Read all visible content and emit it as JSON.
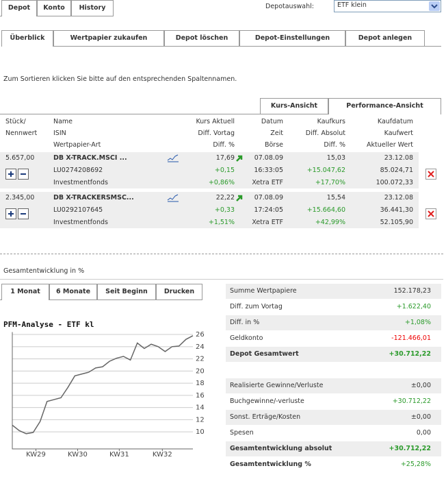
{
  "top_tabs": [
    "Depot",
    "Konto",
    "History"
  ],
  "depot_select": {
    "label": "Depotauswahl:",
    "value": "ETF klein"
  },
  "sub_tabs": [
    "Überblick",
    "Wertpapier zukaufen",
    "Depot löschen",
    "Depot-Einstellungen",
    "Depot anlegen"
  ],
  "sort_hint": "Zum Sortieren klicken Sie bitte auf den entsprechenden Spaltennamen.",
  "view_tabs": [
    "Kurs-Ansicht",
    "Performance-Ansicht"
  ],
  "columns": [
    [
      "Stück/",
      "Nennwert"
    ],
    [
      "Name",
      "ISIN",
      "Wertpapier-Art"
    ],
    [
      "Kurs Aktuell",
      "Diff. Vortag",
      "Diff. %"
    ],
    [
      "Datum",
      "Zeit",
      "Börse"
    ],
    [
      "Kaufkurs",
      "Diff. Absolut",
      "Diff. %"
    ],
    [
      "Kaufdatum",
      "Kaufwert",
      "Aktueller Wert"
    ]
  ],
  "positions": [
    [
      [
        "5.657,00"
      ],
      [
        "DB X-TRACK.MSCI ...",
        "LU0274208692",
        "Investmentfonds"
      ],
      [
        "17,69",
        "+0,15",
        "+0,86%"
      ],
      [
        "07.08.09",
        "16:33:05",
        "Xetra ETF"
      ],
      [
        "15,03",
        "+15.047,62",
        "+17,70%"
      ],
      [
        "23.12.08",
        "85.024,71",
        "100.072,33"
      ]
    ],
    [
      [
        "2.345,00"
      ],
      [
        "DB X-TRACKERSMSC...",
        "LU0292107645",
        "Investmentfonds"
      ],
      [
        "22,22",
        "+0,33",
        "+1,51%"
      ],
      [
        "07.08.09",
        "17:24:05",
        "Xetra ETF"
      ],
      [
        "15,54",
        "+15.664,60",
        "+42,99%"
      ],
      [
        "23.12.08",
        "36.441,30",
        "52.105,90"
      ]
    ]
  ],
  "section_title": "Gesamtentwicklung in %",
  "period_tabs": [
    "1 Monat",
    "6 Monate",
    "Seit Beginn",
    "Drucken"
  ],
  "chart_data": {
    "type": "line",
    "title": "PFM-Analyse - ETF kl",
    "x": [
      0,
      1,
      2,
      3,
      4,
      5,
      6,
      7,
      8,
      9,
      10,
      11,
      12,
      13,
      14,
      15,
      16,
      17,
      18,
      19,
      20,
      21,
      22,
      23,
      24,
      25,
      26
    ],
    "series": [
      {
        "color": "#666666",
        "values": [
          11.1,
          10.2,
          9.7,
          9.9,
          11.7,
          15.0,
          15.3,
          15.6,
          17.3,
          19.2,
          19.5,
          19.8,
          20.5,
          20.7,
          21.6,
          22.1,
          22.4,
          21.8,
          24.6,
          23.7,
          24.4,
          24.0,
          23.2,
          24.0,
          24.1,
          25.2,
          25.8
        ]
      }
    ],
    "xlim": [
      0,
      26
    ],
    "xticks": [
      {
        "value": 3.4,
        "label": "KW29"
      },
      {
        "value": 9.4,
        "label": "KW30"
      },
      {
        "value": 15.4,
        "label": "KW31"
      },
      {
        "value": 21.6,
        "label": "KW32"
      }
    ],
    "ylim": [
      7.2,
      26.4
    ],
    "yticks": [
      10,
      12,
      14,
      16,
      18,
      20,
      22,
      24,
      26
    ],
    "grid": true
  },
  "summary": [
    [
      [
        "Summe Wertpapiere",
        "152.178,23"
      ],
      [
        "Diff. zum Vortag",
        "+1.622,40"
      ],
      [
        "Diff. in %",
        "+1,08%"
      ],
      [
        "Geldkonto",
        "-121.466,01"
      ],
      [
        "Depot Gesamtwert",
        "+30.712,22"
      ]
    ],
    [
      [
        "Realisierte Gewinne/Verluste",
        "±0,00"
      ],
      [
        "Buchgewinne/-verluste",
        "+30.712,22"
      ],
      [
        "Sonst. Erträge/Kosten",
        "±0,00"
      ],
      [
        "Spesen",
        "0,00"
      ],
      [
        "Gesamtentwicklung absolut",
        "+30.712,22"
      ],
      [
        "Gesamtentwicklung %",
        "+25,28%"
      ]
    ]
  ]
}
